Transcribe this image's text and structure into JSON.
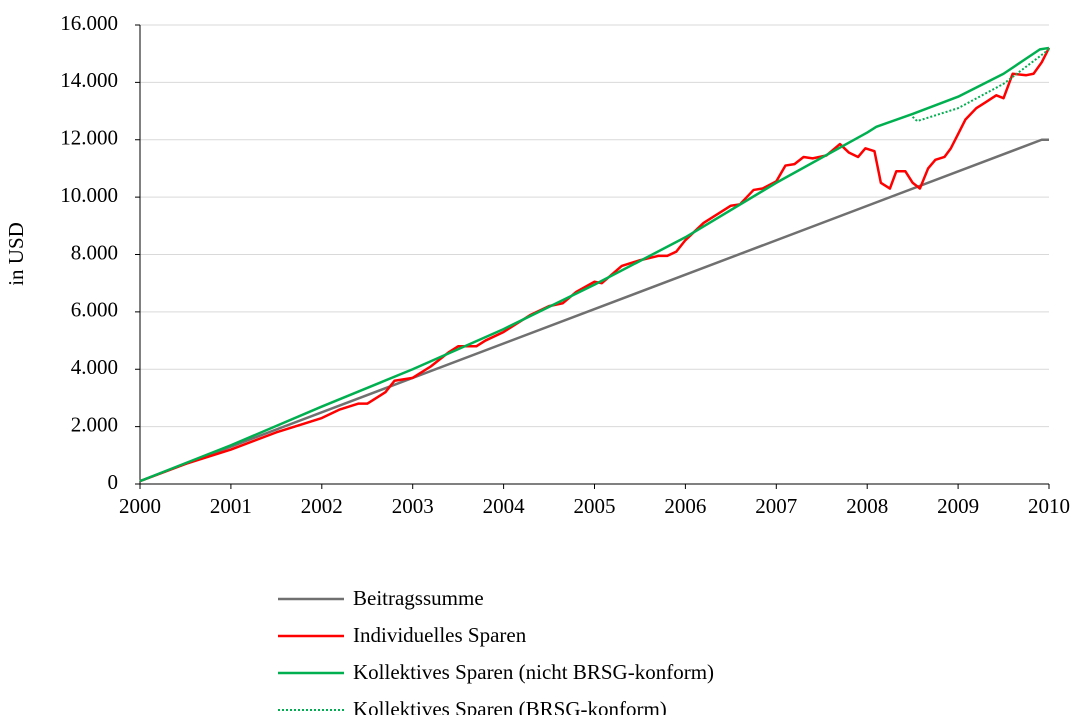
{
  "chart_data": {
    "type": "line",
    "y_label": "in USD",
    "xlim": [
      2000,
      2010
    ],
    "xticks": [
      2000,
      2001,
      2002,
      2003,
      2004,
      2005,
      2006,
      2007,
      2008,
      2009,
      2010
    ],
    "ylim": [
      0,
      16000
    ],
    "yticks": [
      0,
      {
        "value": 2000,
        "label": "2.000"
      },
      {
        "value": 4000,
        "label": "4.000"
      },
      {
        "value": 6000,
        "label": "6.000"
      },
      {
        "value": 8000,
        "label": "8.000"
      },
      {
        "value": 10000,
        "label": "10.000"
      },
      {
        "value": 12000,
        "label": "12.000"
      },
      {
        "value": 14000,
        "label": "14.000"
      },
      {
        "value": 16000,
        "label": "16.000"
      }
    ],
    "grid": true,
    "legend": "bottom",
    "series": [
      {
        "name": "Beitragssumme",
        "color": "#707070",
        "dash": "solid",
        "x": [
          2000,
          2009.92,
          2010
        ],
        "values": [
          100,
          12000,
          12000
        ]
      },
      {
        "name": "Individuelles Sparen",
        "color": "#ff0000",
        "dash": "solid",
        "x": [
          2000,
          2000.5,
          2001,
          2001.5,
          2001.8,
          2002,
          2002.2,
          2002.4,
          2002.5,
          2002.7,
          2002.8,
          2003,
          2003.2,
          2003.4,
          2003.5,
          2003.7,
          2003.8,
          2004,
          2004.2,
          2004.3,
          2004.5,
          2004.65,
          2004.8,
          2005,
          2005.08,
          2005.3,
          2005.5,
          2005.7,
          2005.8,
          2005.9,
          2006,
          2006.2,
          2006.35,
          2006.5,
          2006.6,
          2006.75,
          2006.85,
          2007,
          2007.1,
          2007.2,
          2007.3,
          2007.4,
          2007.55,
          2007.7,
          2007.8,
          2007.9,
          2007.98,
          2008.08,
          2008.15,
          2008.25,
          2008.32,
          2008.42,
          2008.5,
          2008.58,
          2008.67,
          2008.75,
          2008.85,
          2008.92,
          2009,
          2009.08,
          2009.2,
          2009.3,
          2009.42,
          2009.5,
          2009.6,
          2009.75,
          2009.83,
          2009.92,
          2010
        ],
        "values": [
          100,
          700,
          1200,
          1800,
          2100,
          2300,
          2600,
          2800,
          2800,
          3200,
          3600,
          3700,
          4100,
          4600,
          4800,
          4800,
          5000,
          5300,
          5700,
          5900,
          6200,
          6300,
          6700,
          7050,
          7000,
          7600,
          7800,
          7950,
          7950,
          8100,
          8500,
          9100,
          9400,
          9700,
          9750,
          10250,
          10300,
          10550,
          11100,
          11150,
          11400,
          11350,
          11450,
          11850,
          11550,
          11400,
          11700,
          11600,
          10500,
          10300,
          10900,
          10900,
          10500,
          10300,
          11000,
          11300,
          11400,
          11700,
          12200,
          12700,
          13100,
          13300,
          13550,
          13450,
          14300,
          14250,
          14300,
          14700,
          15200
        ]
      },
      {
        "name": "Kollektives Sparen (nicht BRSG-konform)",
        "color": "#00b050",
        "dash": "solid",
        "x": [
          2000,
          2001,
          2002,
          2003,
          2004,
          2005,
          2006,
          2007,
          2008,
          2008.1,
          2008.5,
          2009,
          2009.5,
          2009.9,
          2010
        ],
        "values": [
          100,
          1350,
          2700,
          4000,
          5400,
          6950,
          8600,
          10500,
          12250,
          12450,
          12900,
          13500,
          14300,
          15150,
          15200
        ]
      },
      {
        "name": "Kollektives Sparen (BRSG-konform)",
        "color": "#00b050",
        "dash": "dotted",
        "x": [
          2008.5,
          2008.55,
          2009,
          2009.5,
          2010
        ],
        "values": [
          12800,
          12650,
          13100,
          13950,
          15150
        ]
      }
    ]
  }
}
